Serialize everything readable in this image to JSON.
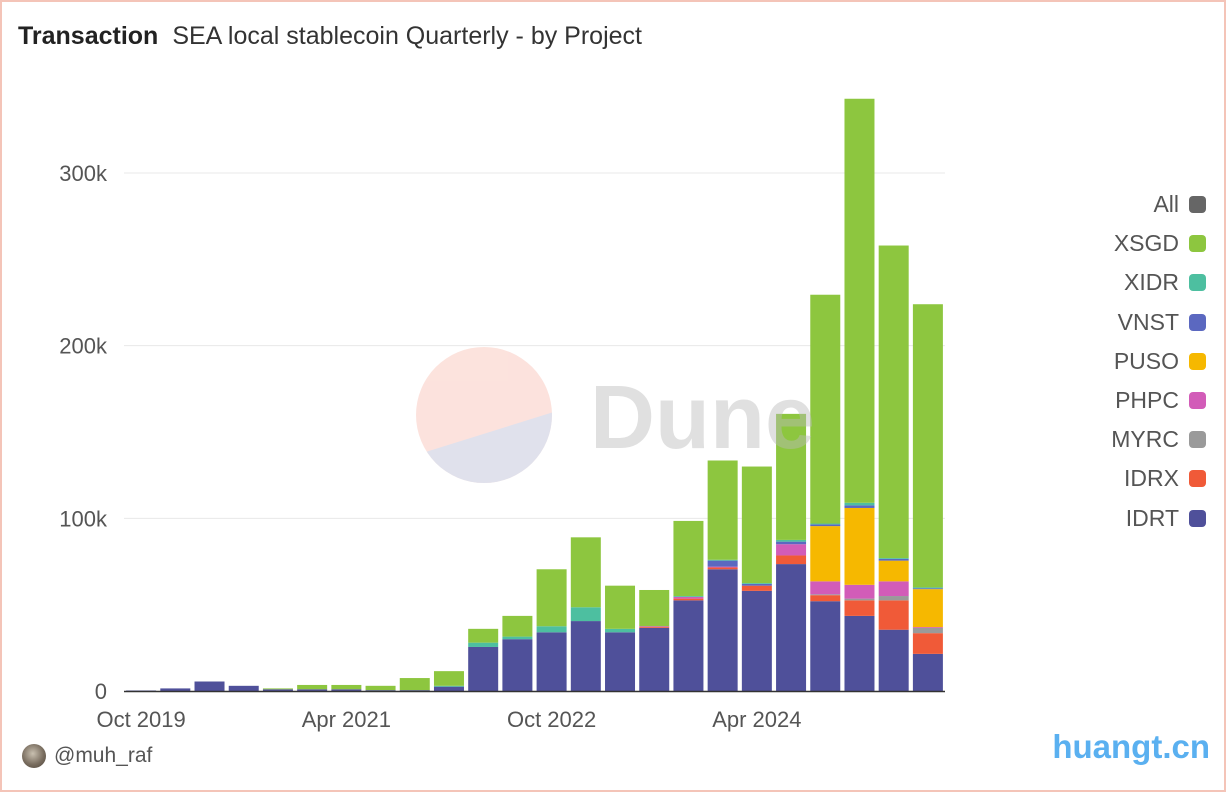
{
  "header": {
    "title": "Transaction",
    "subtitle": "SEA local stablecoin Quarterly - by Project"
  },
  "footer": {
    "author": "@muh_raf",
    "brand": "huangt.cn"
  },
  "watermark": {
    "text": "Dune"
  },
  "legend": [
    {
      "name": "All",
      "color": "#666666"
    },
    {
      "name": "XSGD",
      "color": "#8dc63f"
    },
    {
      "name": "XIDR",
      "color": "#4dbfa0"
    },
    {
      "name": "VNST",
      "color": "#5b68c0"
    },
    {
      "name": "PUSO",
      "color": "#f6b800"
    },
    {
      "name": "PHPC",
      "color": "#d25cb8"
    },
    {
      "name": "MYRC",
      "color": "#9a9a9a"
    },
    {
      "name": "IDRX",
      "color": "#f05a38"
    },
    {
      "name": "IDRT",
      "color": "#4f509a"
    }
  ],
  "chart_data": {
    "type": "bar",
    "stacked": true,
    "title": "SEA local stablecoin Quarterly - by Project",
    "xlabel": "",
    "ylabel": "",
    "ylim": [
      0,
      350000
    ],
    "yticks": [
      {
        "v": 0,
        "label": "0"
      },
      {
        "v": 100000,
        "label": "100k"
      },
      {
        "v": 200000,
        "label": "200k"
      },
      {
        "v": 300000,
        "label": "300k"
      }
    ],
    "xticks": [
      {
        "i": 0,
        "label": "Oct 2019"
      },
      {
        "i": 6,
        "label": "Apr 2021"
      },
      {
        "i": 12,
        "label": "Oct 2022"
      },
      {
        "i": 18,
        "label": "Apr 2024"
      }
    ],
    "grid": true,
    "legend_position": "right",
    "categories": [
      "Oct 2019",
      "Jan 2020",
      "Apr 2020",
      "Jul 2020",
      "Oct 2020",
      "Jan 2021",
      "Apr 2021",
      "Jul 2021",
      "Oct 2021",
      "Jan 2022",
      "Apr 2022",
      "Jul 2022",
      "Oct 2022",
      "Jan 2023",
      "Apr 2023",
      "Jul 2023",
      "Oct 2023",
      "Jan 2024",
      "Apr 2024",
      "Jul 2024",
      "Oct 2024",
      "Jan 2025",
      "Apr 2025",
      "Jul 2025"
    ],
    "series": [
      {
        "name": "IDRT",
        "color": "#4f509a",
        "values": [
          300,
          1500,
          5500,
          3000,
          1000,
          1000,
          1000,
          500,
          500,
          2500,
          25500,
          30000,
          34000,
          40500,
          34000,
          36500,
          52500,
          70500,
          58000,
          73500,
          52000,
          43500,
          35500,
          21500
        ]
      },
      {
        "name": "IDRX",
        "color": "#f05a38",
        "values": [
          0,
          0,
          0,
          0,
          0,
          0,
          0,
          0,
          0,
          0,
          0,
          0,
          0,
          0,
          0,
          500,
          1000,
          1000,
          3000,
          5000,
          3500,
          9000,
          17000,
          12000
        ]
      },
      {
        "name": "MYRC",
        "color": "#9a9a9a",
        "values": [
          0,
          0,
          0,
          0,
          0,
          0,
          0,
          0,
          0,
          0,
          0,
          0,
          0,
          0,
          0,
          0,
          0,
          0,
          0,
          0,
          500,
          1000,
          2500,
          3000
        ]
      },
      {
        "name": "PHPC",
        "color": "#d25cb8",
        "values": [
          0,
          0,
          0,
          0,
          0,
          0,
          0,
          0,
          0,
          0,
          0,
          0,
          0,
          0,
          0,
          500,
          1000,
          500,
          0,
          6500,
          7500,
          8000,
          8500,
          500
        ]
      },
      {
        "name": "PUSO",
        "color": "#f6b800",
        "values": [
          0,
          0,
          0,
          0,
          0,
          0,
          0,
          0,
          0,
          0,
          0,
          0,
          0,
          0,
          0,
          0,
          0,
          0,
          0,
          0,
          32000,
          44500,
          12000,
          22000
        ]
      },
      {
        "name": "VNST",
        "color": "#5b68c0",
        "values": [
          0,
          0,
          0,
          0,
          0,
          0,
          0,
          0,
          0,
          0,
          0,
          0,
          0,
          0,
          0,
          0,
          0,
          3500,
          1000,
          1500,
          1000,
          1500,
          1000,
          500
        ]
      },
      {
        "name": "XIDR",
        "color": "#4dbfa0",
        "values": [
          0,
          0,
          0,
          0,
          0,
          0,
          0,
          0,
          0,
          500,
          2500,
          1500,
          3500,
          8000,
          2000,
          0,
          500,
          500,
          500,
          1000,
          500,
          1500,
          500,
          500
        ]
      },
      {
        "name": "XSGD",
        "color": "#8dc63f",
        "values": [
          0,
          0,
          0,
          0,
          500,
          2500,
          2500,
          2500,
          7000,
          8500,
          8000,
          12000,
          33000,
          40500,
          25000,
          21000,
          43500,
          57500,
          67500,
          73000,
          132500,
          234000,
          181000,
          164000
        ]
      }
    ]
  }
}
